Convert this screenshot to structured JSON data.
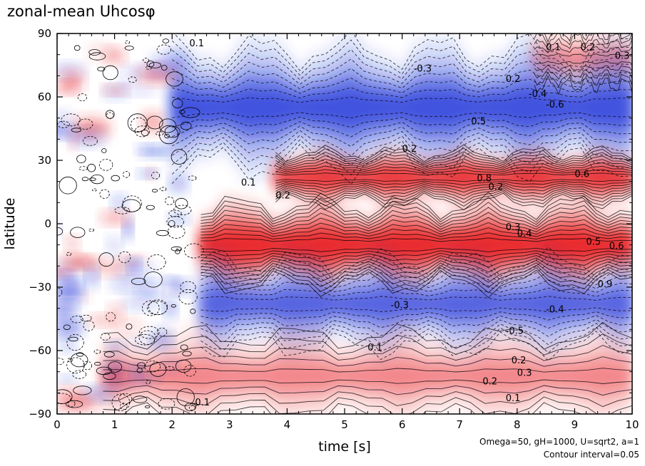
{
  "chart_data": {
    "type": "heatmap",
    "title": "zonal-mean Uhcosφ",
    "xlabel": "time [s]",
    "ylabel": "latitude",
    "xlim": [
      0,
      10
    ],
    "ylim": [
      -90,
      90
    ],
    "x_ticks": [
      "0",
      "1",
      "2",
      "3",
      "4",
      "5",
      "6",
      "7",
      "8",
      "9",
      "10"
    ],
    "y_ticks": [
      "90",
      "60",
      "30",
      "0",
      "−30",
      "−60",
      "−90"
    ],
    "colors": {
      "positive": "#e8262a",
      "negative": "#1f30d8",
      "zero": "#ffffff",
      "contour": "#000000"
    },
    "bands": [
      {
        "name": "north-polar-positive",
        "lat_center": 78,
        "lat_halfwidth": 6,
        "t_start": 8.3,
        "t_end": 10,
        "value": 0.3
      },
      {
        "name": "north-high-negative",
        "lat_center": 55,
        "lat_halfwidth": 12,
        "t_start": 2.0,
        "t_end": 10,
        "value": -0.6
      },
      {
        "name": "north-subtropic-positive",
        "lat_center": 22,
        "lat_halfwidth": 5,
        "t_start": 3.8,
        "t_end": 10,
        "value": 0.8
      },
      {
        "name": "equatorial-positive",
        "lat_center": -10,
        "lat_halfwidth": 8,
        "t_start": 2.5,
        "t_end": 10,
        "value": 0.9
      },
      {
        "name": "south-mid-negative",
        "lat_center": -38,
        "lat_halfwidth": 9,
        "t_start": 2.5,
        "t_end": 10,
        "value": -0.5
      },
      {
        "name": "south-high-positive",
        "lat_center": -72,
        "lat_halfwidth": 9,
        "t_start": 0.8,
        "t_end": 10,
        "value": 0.3
      }
    ],
    "contour_labels": [
      "0.1",
      "-0.3",
      "0.2",
      "0.1",
      "0.2",
      "0.3",
      "-0.4",
      "-0.6",
      "0.5",
      "0.2",
      "0.1",
      "0.2",
      "0.6",
      "0.8",
      "0.2",
      "0.3",
      "0.4",
      "0.5",
      "0.6",
      "0.9",
      "-0.3",
      "-0.4",
      "-0.5",
      "0.1",
      "0.2",
      "0.3",
      "0.2",
      "0.1",
      "0.1"
    ],
    "contour_interval": "0.05",
    "params": "Omega=50, gH=1000, U=sqrt2, a=1"
  },
  "annotations": {
    "params_text": "Omega=50, gH=1000, U=sqrt2, a=1",
    "interval_text": "Contour interval=0.05"
  }
}
